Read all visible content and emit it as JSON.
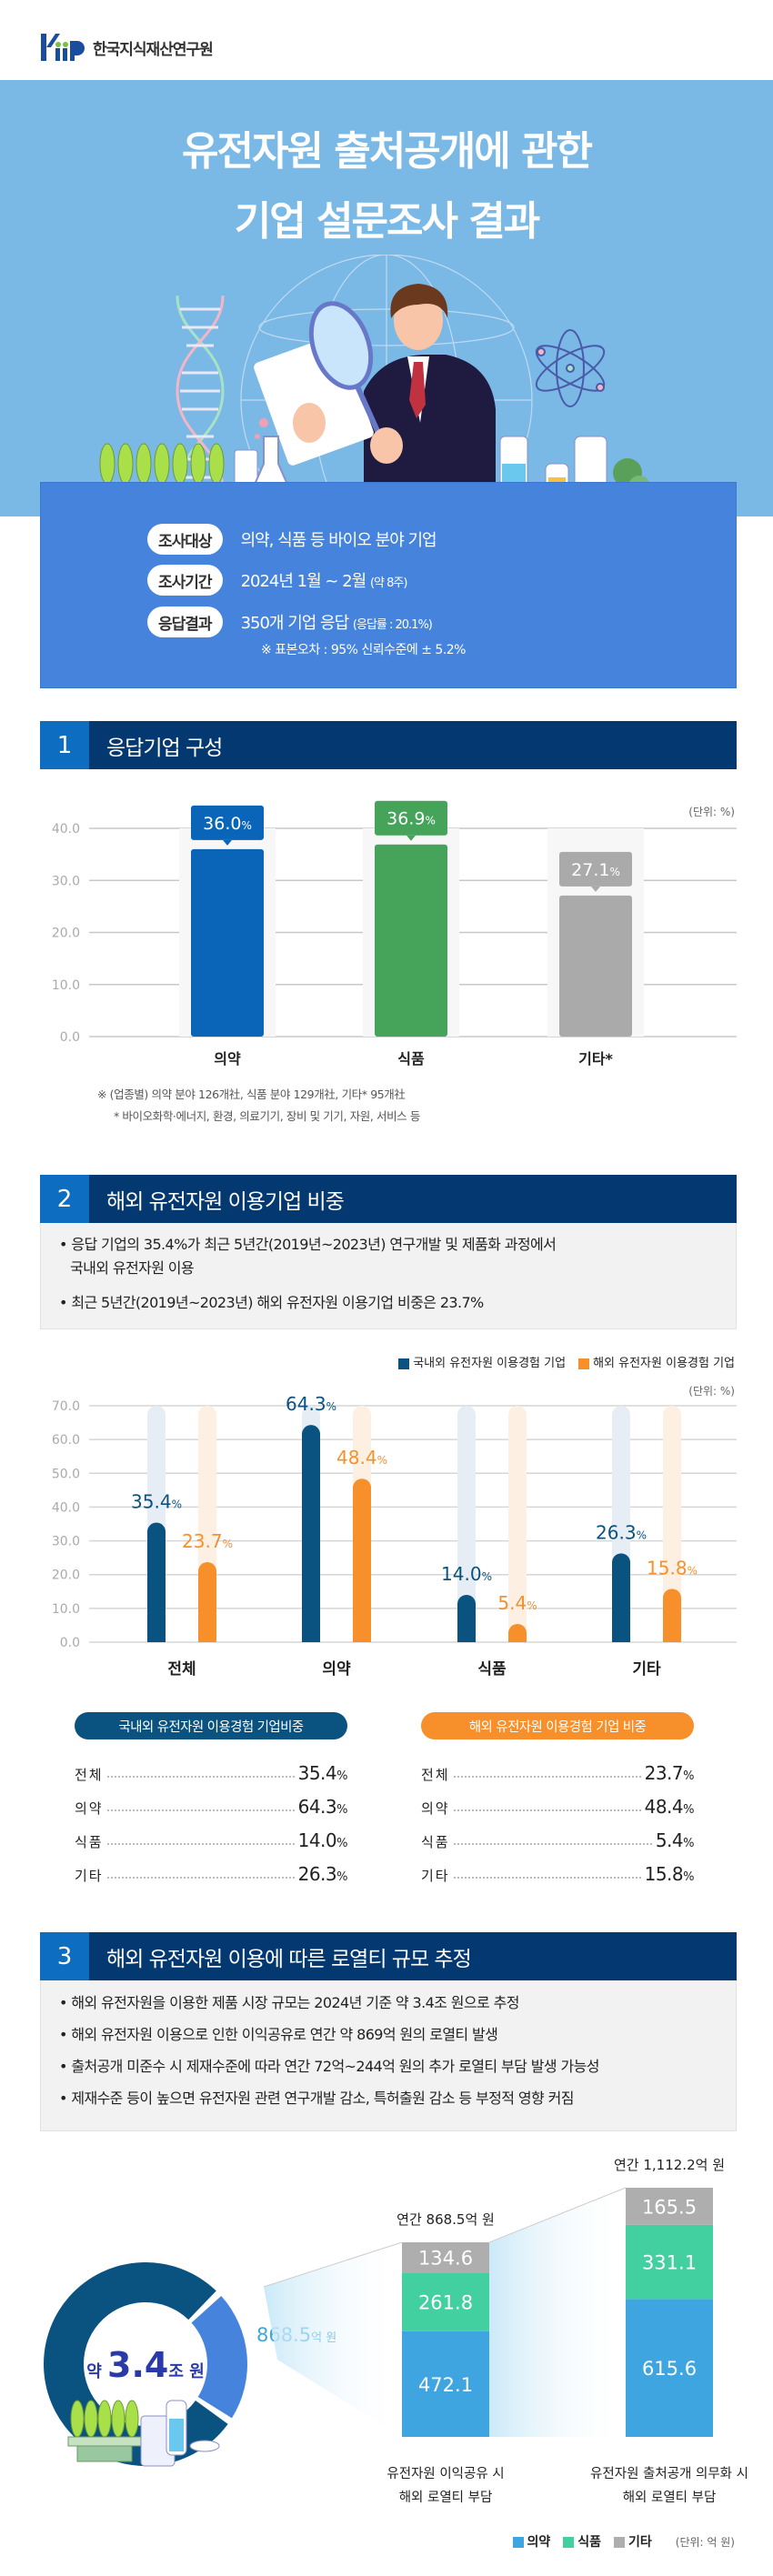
{
  "header": {
    "org_name": "한국지식재산연구원",
    "logo_letters": "KIIP"
  },
  "hero": {
    "title_line1": "유전자원 출처공개에 관한",
    "title_line2": "기업 설문조사 결과"
  },
  "survey_info": {
    "rows": [
      {
        "label": "조사대상",
        "value": "의약, 식품 등 바이오 분야 기업",
        "small": ""
      },
      {
        "label": "조사기간",
        "value": "2024년 1월 ~ 2월",
        "small": "(약 8주)"
      },
      {
        "label": "응답결과",
        "value": "350개 기업 응답",
        "small": "(응답률 : 20.1%)"
      }
    ],
    "note": "※ 표본오차 : 95% 신뢰수준에 ± 5.2%"
  },
  "section1": {
    "number": "1",
    "title": "응답기업 구성",
    "unit": "(단위: %)",
    "footnote1": "※ (업종별) 의약 분야 126개社, 식품 분야 129개社, 기타* 95개社",
    "footnote2": "* 바이오화학·에너지, 환경, 의료기기, 장비 및 기기, 자원, 서비스 등"
  },
  "section2": {
    "number": "2",
    "title": "해외 유전자원 이용기업 비중",
    "bullets": [
      {
        "line1": "• 응답 기업의 35.4%가 최근 5년간(2019년~2023년) 연구개발 및 제품화 과정에서",
        "line2": "국내외 유전자원 이용"
      },
      {
        "line1": "• 최근 5년간(2019년~2023년) 해외 유전자원 이용기업 비중은 23.7%",
        "line2": ""
      }
    ],
    "unit": "(단위: %)",
    "table_domestic": {
      "title": "국내외 유전자원 이용경험 기업비중",
      "rows": [
        {
          "label": "전체",
          "value": "35.4",
          "pct": "%"
        },
        {
          "label": "의약",
          "value": "64.3",
          "pct": "%"
        },
        {
          "label": "식품",
          "value": "14.0",
          "pct": "%"
        },
        {
          "label": "기타",
          "value": "26.3",
          "pct": "%"
        }
      ]
    },
    "table_overseas": {
      "title": "해외 유전자원 이용경험 기업 비중",
      "rows": [
        {
          "label": "전체",
          "value": "23.7",
          "pct": "%"
        },
        {
          "label": "의약",
          "value": "48.4",
          "pct": "%"
        },
        {
          "label": "식품",
          "value": "5.4",
          "pct": "%"
        },
        {
          "label": "기타",
          "value": "15.8",
          "pct": "%"
        }
      ]
    }
  },
  "section3": {
    "number": "3",
    "title": "해외 유전자원 이용에 따른 로열티 규모 추정",
    "bullets": [
      "• 해외 유전자원을 이용한 제품 시장 규모는 2024년 기준 약 3.4조 원으로 추정",
      "• 해외 유전자원 이용으로 인한 이익공유로 연간 약 869억 원의 로열티 발생",
      "• 출처공개 미준수 시 제재수준에 따라 연간 72억~244억 원의 추가 로열티 부담 발생 가능성",
      "• 제재수준 등이 높으면 유전자원 관련 연구개발 감소, 특허출원 감소 등 부정적 영향 커짐"
    ],
    "donut_prefix": "약",
    "donut_value": "3.4",
    "donut_suffix": "조 원",
    "slice_value": "868.5",
    "slice_suffix": "억 원",
    "unit": "(단위: 억 원)"
  },
  "colors": {
    "hero_bg": "#7ab8e6",
    "info_box": "#4683dc",
    "section_head": "#043870",
    "section_num": "#0d6ec1",
    "pharma_blue": "#0a64b8",
    "food_green": "#45a35a",
    "other_gray": "#aaaaaa",
    "domestic_navy": "#0a5280",
    "overseas_orange": "#f7902a",
    "stack_pharma": "#3fa5e0",
    "stack_food": "#42d0a0",
    "stack_other": "#aeaeae",
    "donut_dark": "#0a5280",
    "donut_light": "#4683dc"
  },
  "chart_data": [
    {
      "type": "bar",
      "title": "응답기업 구성",
      "categories": [
        "의약",
        "식품",
        "기타*"
      ],
      "values": [
        36.0,
        36.9,
        27.1
      ],
      "value_labels": [
        "36.0",
        "36.9",
        "27.1"
      ],
      "pct_symbol": "%",
      "ylim": [
        0,
        40
      ],
      "yticks": [
        "0.0",
        "10.0",
        "20.0",
        "30.0",
        "40.0"
      ],
      "ylabel": "(단위: %)",
      "grid": true
    },
    {
      "type": "bar",
      "title": "해외 유전자원 이용기업 비중",
      "categories": [
        "전체",
        "의약",
        "식품",
        "기타"
      ],
      "series": [
        {
          "name": "국내외 유전자원 이용경험 기업",
          "values": [
            35.4,
            64.3,
            14.0,
            26.3
          ],
          "labels": [
            "35.4",
            "64.3",
            "14.0",
            "26.3"
          ]
        },
        {
          "name": "해외 유전자원 이용경험 기업",
          "values": [
            23.7,
            48.4,
            5.4,
            15.8
          ],
          "labels": [
            "23.7",
            "48.4",
            "5.4",
            "15.8"
          ]
        }
      ],
      "pct_symbol": "%",
      "ylim": [
        0,
        70
      ],
      "yticks": [
        "0.0",
        "10.0",
        "20.0",
        "30.0",
        "40.0",
        "50.0",
        "60.0",
        "70.0"
      ],
      "legend": "top-right",
      "grid": true
    },
    {
      "type": "bar",
      "stacked": true,
      "title": "해외 로열티 부담",
      "categories": [
        "유전자원 이익공유 시|해외 로열티 부담",
        "유전자원 출처공개 의무화 시|해외 로열티 부담"
      ],
      "category_lines": [
        [
          "유전자원 이익공유 시",
          "해외 로열티 부담"
        ],
        [
          "유전자원 출처공개 의무화 시",
          "해외 로열티 부담"
        ]
      ],
      "totals": [
        "연간 868.5억 원",
        "연간 1,112.2억 원"
      ],
      "series": [
        {
          "name": "의약",
          "values": [
            472.1,
            615.6
          ]
        },
        {
          "name": "식품",
          "values": [
            261.8,
            331.1
          ]
        },
        {
          "name": "기타",
          "values": [
            134.6,
            165.5
          ]
        }
      ],
      "unit": "(단위: 억 원)",
      "legend": "bottom-right"
    }
  ]
}
